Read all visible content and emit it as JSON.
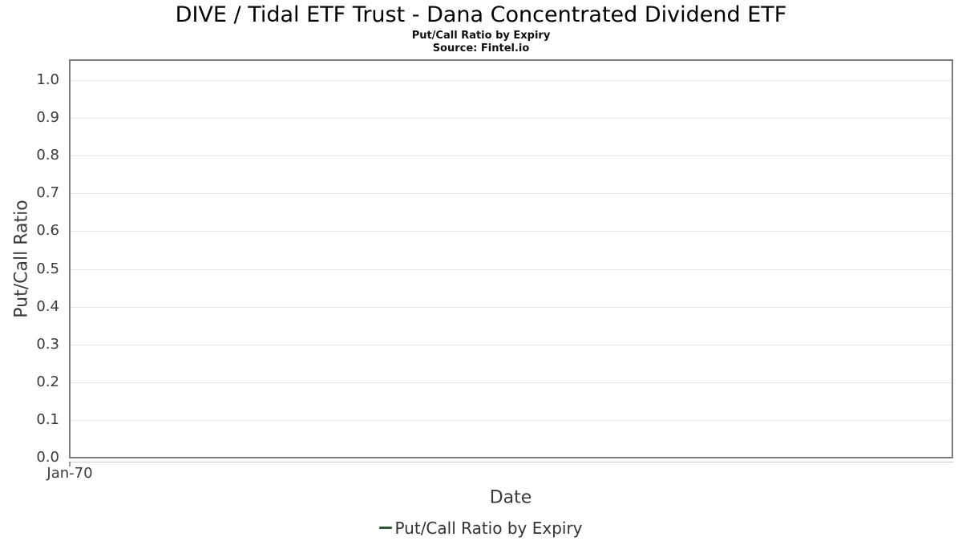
{
  "header": {
    "title": "DIVE / Tidal ETF Trust - Dana Concentrated Dividend ETF",
    "subtitle": "Put/Call Ratio by Expiry",
    "source": "Source: Fintel.io"
  },
  "chart_data": {
    "type": "line",
    "title": "DIVE / Tidal ETF Trust - Dana Concentrated Dividend ETF",
    "subtitle": "Put/Call Ratio by Expiry",
    "source_note": "Source: Fintel.io",
    "xlabel": "Date",
    "ylabel": "Put/Call Ratio",
    "ylim": [
      0.0,
      1.05
    ],
    "yticks": [
      0.0,
      0.1,
      0.2,
      0.3,
      0.4,
      0.5,
      0.6,
      0.7,
      0.8,
      0.9,
      1.0
    ],
    "ytick_labels": [
      "0.0",
      "0.1",
      "0.2",
      "0.3",
      "0.4",
      "0.5",
      "0.6",
      "0.7",
      "0.8",
      "0.9",
      "1.0"
    ],
    "xtick_labels": [
      "Jan-70"
    ],
    "grid": "horizontal gridlines on, vertical off",
    "legend_position": "bottom-center",
    "series": [
      {
        "name": "Put/Call Ratio by Expiry",
        "type": "line",
        "color": "#245c30",
        "x": [],
        "values": []
      }
    ]
  },
  "legend": {
    "items": [
      {
        "label": "Put/Call Ratio by Expiry",
        "marker": "line-dash-icon",
        "color": "#245c30"
      }
    ]
  },
  "colors": {
    "background": "#ffffff",
    "plot_border": "#7d7d7d",
    "gridline": "#e6e6e6",
    "axis_line": "#cfcfcf",
    "tick_mark": "#9a9a9a",
    "tick_text": "#3a3a3a",
    "axis_title_text": "#3a3a3a",
    "title_text": "#000000",
    "legend_text": "#333333",
    "series_green": "#245c30"
  }
}
